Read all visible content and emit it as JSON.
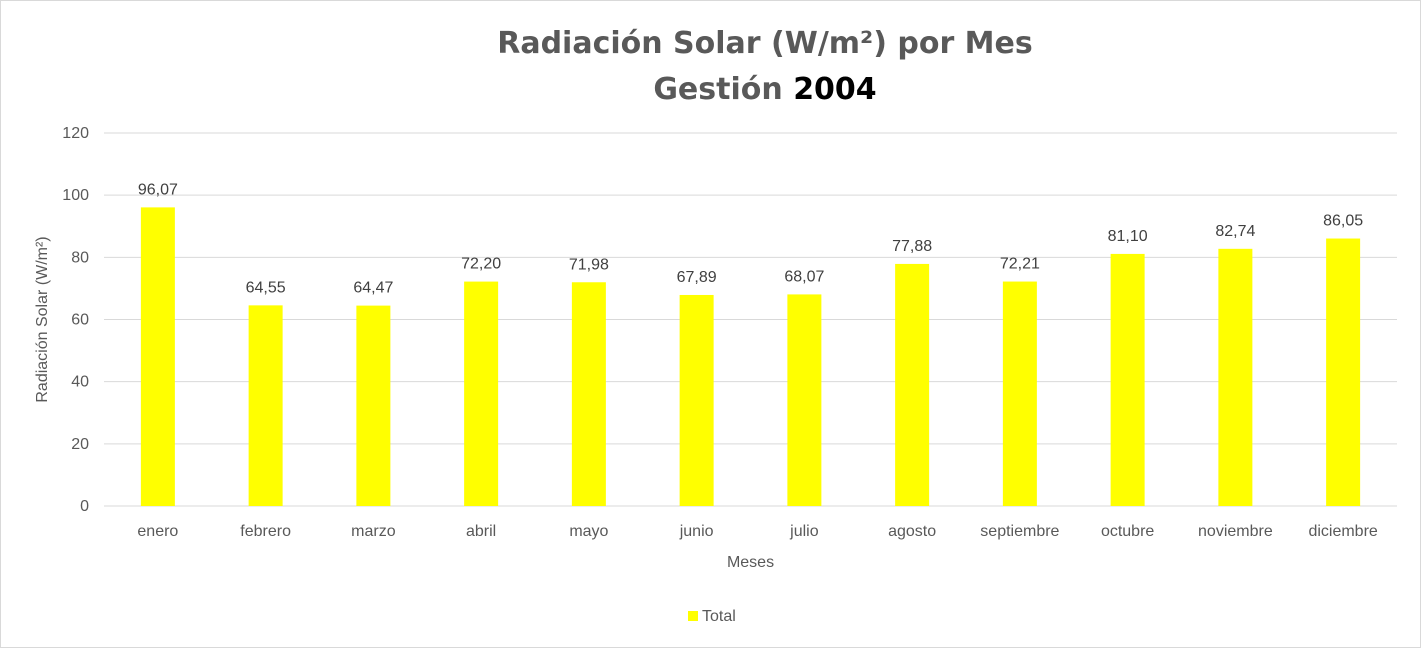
{
  "chart_data": {
    "type": "bar",
    "title": "Radiación Solar (W/m²) por Mes",
    "subtitle_prefix": "Gestión",
    "subtitle_year": "2004",
    "xlabel": "Meses",
    "ylabel": "Radiación Solar (W/m²)",
    "ylim": [
      0,
      120
    ],
    "yticks": [
      0,
      20,
      40,
      60,
      80,
      100,
      120
    ],
    "grid": true,
    "legend_position": "bottom",
    "categories": [
      "enero",
      "febrero",
      "marzo",
      "abril",
      "mayo",
      "junio",
      "julio",
      "agosto",
      "septiembre",
      "octubre",
      "noviembre",
      "diciembre"
    ],
    "series": [
      {
        "name": "Total",
        "color": "#ffff00",
        "values": [
          96.07,
          64.55,
          64.47,
          72.2,
          71.98,
          67.89,
          68.07,
          77.88,
          72.21,
          81.1,
          82.74,
          86.05
        ],
        "data_labels": [
          "96,07",
          "64,55",
          "64,47",
          "72,20",
          "71,98",
          "67,89",
          "68,07",
          "77,88",
          "72,21",
          "81,10",
          "82,74",
          "86,05"
        ]
      }
    ]
  }
}
